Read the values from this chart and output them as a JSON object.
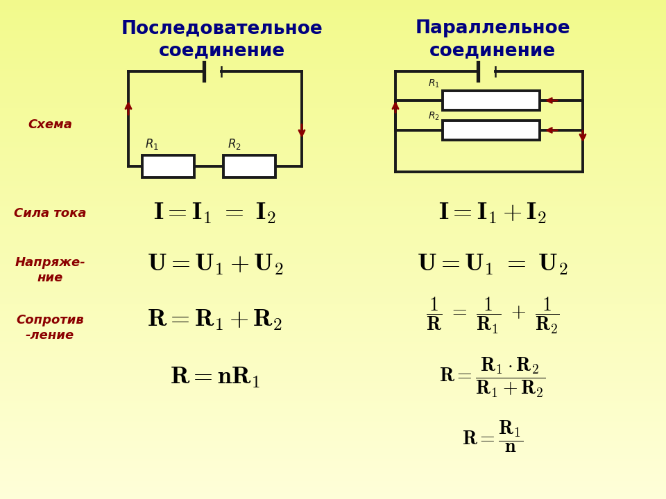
{
  "bg_color_top": "#ffff99",
  "bg_color_bottom": "#ffffee",
  "title_color": "#000080",
  "label_color": "#8B0000",
  "formula_color": "#000000",
  "circuit_color": "#1a1a1a",
  "arrow_color": "#8B0000",
  "col1_title_line1": "Последовательное",
  "col1_title_line2": "соединение",
  "col2_title_line1": "Параллельное",
  "col2_title_line2": "соединение",
  "label_schema": "Схема",
  "label_current": "Сила тока",
  "label_voltage": "Напряже-\nние",
  "label_resist": "Сопротив\n-ление",
  "seq_current": "$I = I_1 = I_2$",
  "seq_voltage": "$U = U_1 + U_2$",
  "seq_resist1": "$R = R_1 + R_2$",
  "seq_resist2": "$R = nR_1$",
  "par_current": "$I = I_1 + I_2$",
  "par_voltage": "$U = U_1 = U_2$"
}
